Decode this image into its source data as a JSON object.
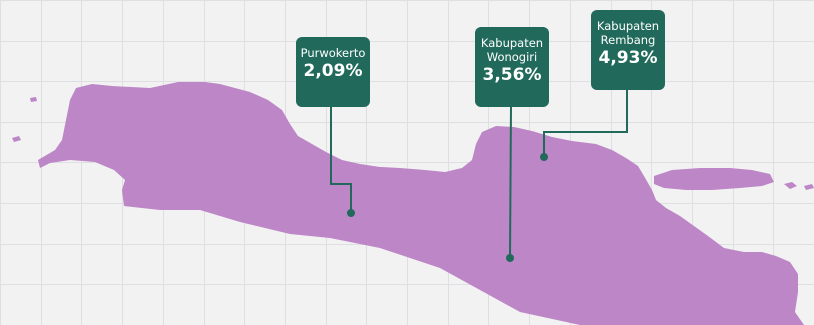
{
  "map": {
    "region_color": "#bd86c6",
    "callout_color": "#216a5b",
    "background_color": "#f2f2f3",
    "grid_color": "#dedee3"
  },
  "callouts": [
    {
      "name": "Purwokerto",
      "value": "2,09%"
    },
    {
      "name": "Kabupaten\nWonogiri",
      "value": "3,56%"
    },
    {
      "name": "Kabupaten\nRembang",
      "value": "4,93%"
    }
  ]
}
